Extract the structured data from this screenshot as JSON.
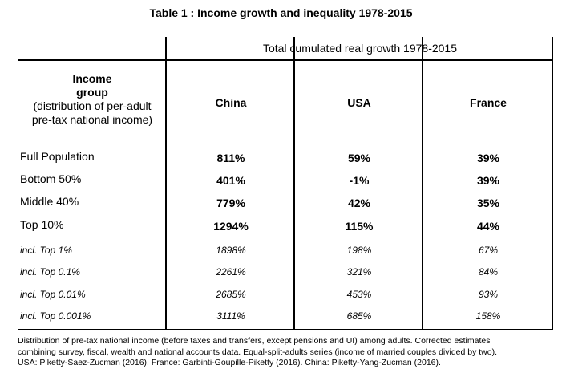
{
  "title": "Table 1 : Income growth and inequality 1978-2015",
  "table": {
    "span_header": "Total cumulated real growth 1978-2015",
    "group_header_bold": [
      "Income",
      "group"
    ],
    "group_header_rest": [
      "(distribution of per-adult",
      "pre-tax national income)"
    ],
    "columns": [
      "China",
      "USA",
      "France"
    ],
    "rows": [
      {
        "label": "Full Population",
        "values": [
          "811%",
          "59%",
          "39%"
        ],
        "italic": false
      },
      {
        "label": "Bottom 50%",
        "values": [
          "401%",
          "-1%",
          "39%"
        ],
        "italic": false
      },
      {
        "label": "Middle 40%",
        "values": [
          "779%",
          "42%",
          "35%"
        ],
        "italic": false
      },
      {
        "label": "Top 10%",
        "values": [
          "1294%",
          "115%",
          "44%"
        ],
        "italic": false
      },
      {
        "label": "incl. Top 1%",
        "values": [
          "1898%",
          "198%",
          "67%"
        ],
        "italic": true
      },
      {
        "label": "incl. Top 0.1%",
        "values": [
          "2261%",
          "321%",
          "84%"
        ],
        "italic": true
      },
      {
        "label": "incl. Top 0.01%",
        "values": [
          "2685%",
          "453%",
          "93%"
        ],
        "italic": true
      },
      {
        "label": "incl. Top 0.001%",
        "values": [
          "3111%",
          "685%",
          "158%"
        ],
        "italic": true
      }
    ]
  },
  "note": [
    "Distribution of pre-tax national income (before taxes and transfers, except pensions and UI) among adults. Corrected estimates",
    "combining survey, fiscal, wealth and national accounts data. Equal-split-adults series (income of married couples divided by two).",
    "USA: Piketty-Saez-Zucman (2016). France: Garbinti-Goupille-Piketty (2016). China: Piketty-Yang-Zucman (2016)."
  ]
}
